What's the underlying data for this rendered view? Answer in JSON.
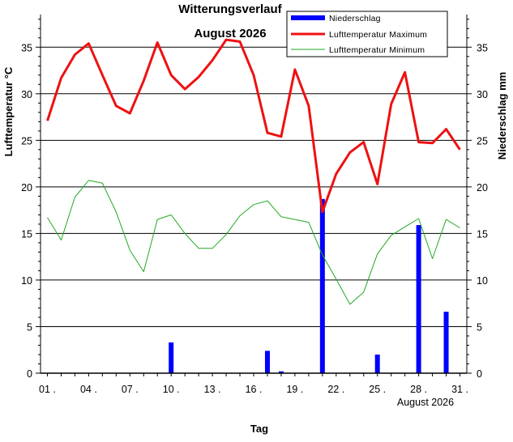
{
  "chart_data": {
    "type": "line",
    "title": "Witterungsverlauf",
    "subtitle": "August 2026",
    "xlabel": "Tag",
    "x_date_label": "August 2026",
    "ylabel_left": "Lufttemperatur °C",
    "ylabel_right": "Niederschlag  mm",
    "ylim": [
      0,
      38.5
    ],
    "y_ticks": [
      0,
      5,
      10,
      15,
      20,
      25,
      30,
      35
    ],
    "grid": true,
    "legend_position": "top-right",
    "x_tick_days": [
      1,
      4,
      7,
      10,
      13,
      16,
      19,
      22,
      25,
      28,
      31
    ],
    "x_tick_labels": [
      "01 .",
      "04 .",
      "07 .",
      "10 .",
      "13 .",
      "16 .",
      "19 .",
      "22 .",
      "25 .",
      "28 .",
      "31 ."
    ],
    "days": [
      1,
      2,
      3,
      4,
      5,
      6,
      7,
      8,
      9,
      10,
      11,
      12,
      13,
      14,
      15,
      16,
      17,
      18,
      19,
      20,
      21,
      22,
      23,
      24,
      25,
      26,
      27,
      28,
      29,
      30,
      31
    ],
    "series": [
      {
        "name": "Niederschlag",
        "kind": "bar",
        "axis": "right",
        "color": "#0000ff",
        "values": [
          0,
          0,
          0,
          0,
          0,
          0,
          0,
          0,
          0,
          3.3,
          0,
          0,
          0,
          0,
          0,
          0,
          2.4,
          0.2,
          0,
          0,
          18.7,
          0,
          0,
          0,
          2.0,
          0,
          0,
          15.9,
          0,
          6.6,
          0
        ]
      },
      {
        "name": "Lufttemperatur Maximum",
        "kind": "line",
        "axis": "left",
        "color": "#ee1111",
        "values": [
          27.1,
          31.7,
          34.2,
          35.4,
          32.0,
          28.7,
          27.9,
          31.4,
          35.5,
          32.0,
          30.5,
          31.8,
          33.6,
          35.8,
          35.6,
          32.0,
          25.8,
          25.4,
          32.6,
          28.7,
          17.3,
          21.4,
          23.7,
          24.8,
          20.3,
          28.9,
          32.3,
          24.8,
          24.7,
          26.2,
          24.0
        ]
      },
      {
        "name": "Lufttemperatur Minimum",
        "kind": "line",
        "axis": "left",
        "color": "#22aa22",
        "values": [
          16.7,
          14.3,
          18.9,
          20.7,
          20.4,
          17.3,
          13.2,
          10.9,
          16.5,
          17.0,
          15.0,
          13.4,
          13.4,
          14.9,
          16.9,
          18.1,
          18.5,
          16.8,
          16.5,
          16.2,
          12.7,
          10.1,
          7.4,
          8.7,
          12.8,
          14.8,
          15.7,
          16.6,
          12.3,
          16.5,
          15.6
        ]
      }
    ]
  }
}
